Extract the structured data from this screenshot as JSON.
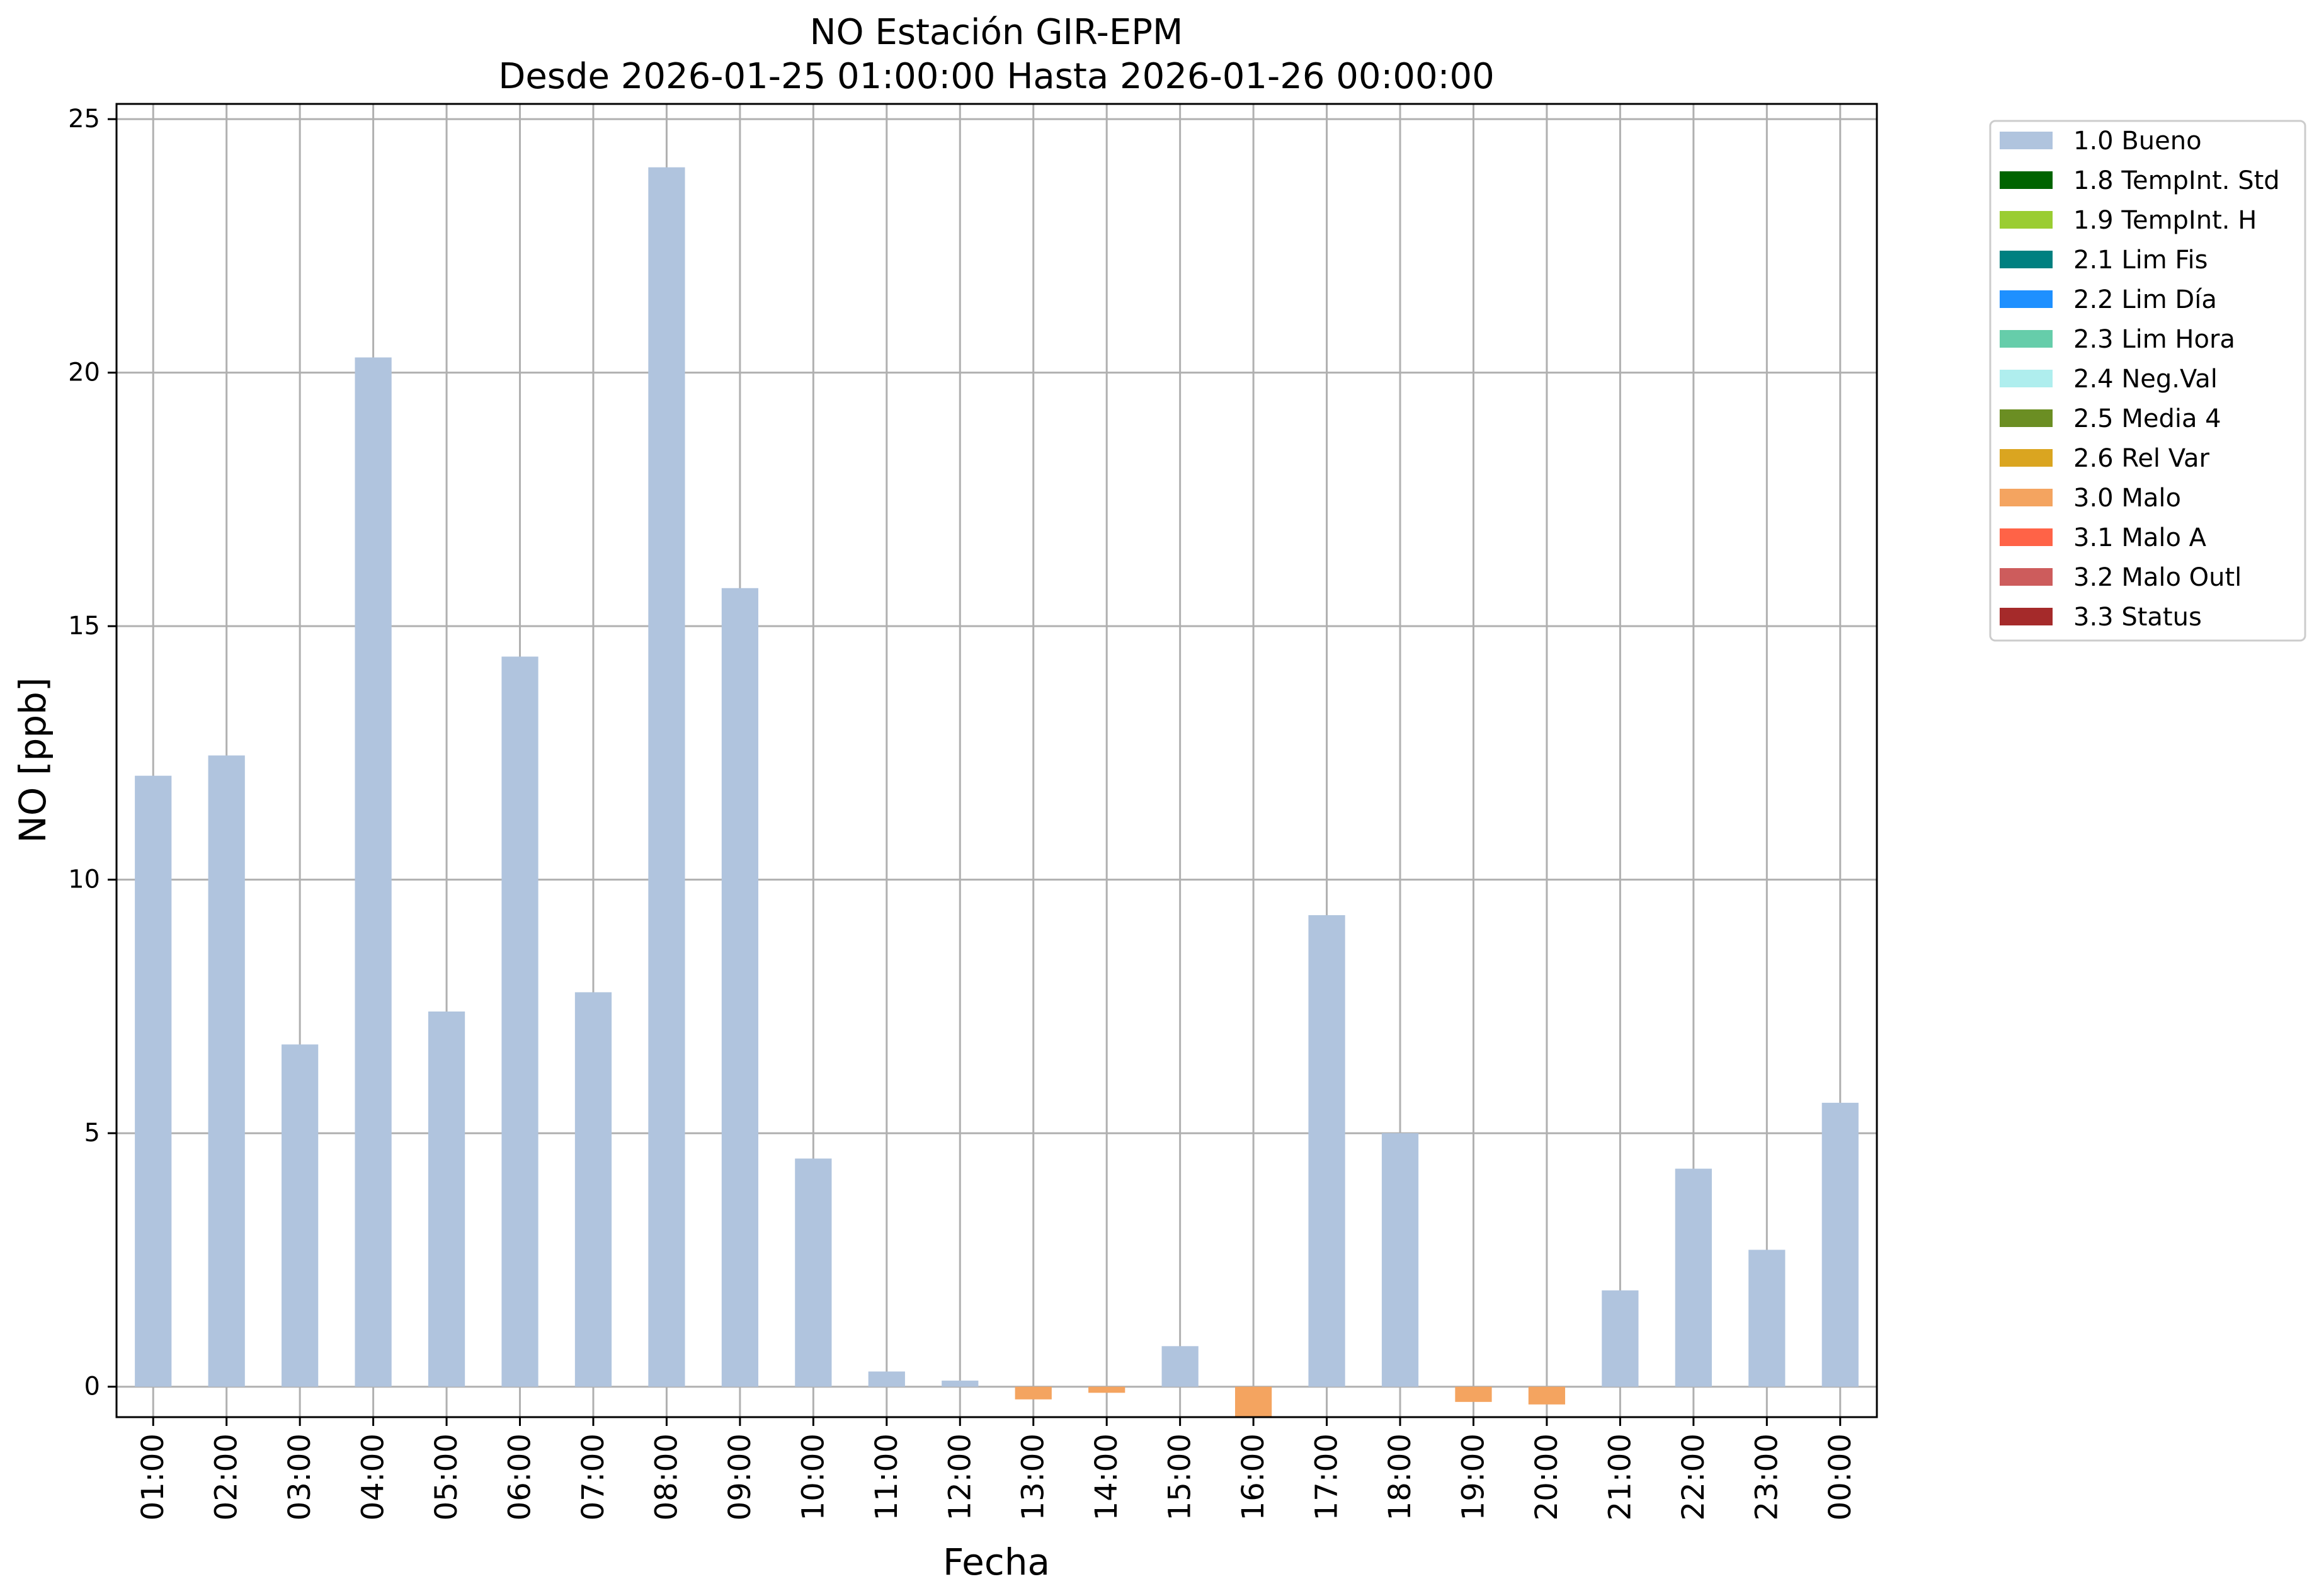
{
  "chart_data": {
    "type": "bar",
    "title": "NO Estación GIR-EPM",
    "subtitle": "Desde 2026-01-25 01:00:00 Hasta 2026-01-26 00:00:00",
    "xlabel": "Fecha",
    "ylabel": "NO [ppb]",
    "ylim": [
      -0.6,
      25.3
    ],
    "yticks": [
      0,
      5,
      10,
      15,
      20,
      25
    ],
    "grid": true,
    "legend_position": "outside-top-right",
    "categories": [
      "01:00",
      "02:00",
      "03:00",
      "04:00",
      "05:00",
      "06:00",
      "07:00",
      "08:00",
      "09:00",
      "10:00",
      "11:00",
      "12:00",
      "13:00",
      "14:00",
      "15:00",
      "16:00",
      "17:00",
      "18:00",
      "19:00",
      "20:00",
      "21:00",
      "22:00",
      "23:00",
      "00:00"
    ],
    "values": [
      12.05,
      12.45,
      6.75,
      20.3,
      7.4,
      14.4,
      7.78,
      24.05,
      15.75,
      4.5,
      0.3,
      0.12,
      -0.25,
      -0.12,
      0.8,
      -0.6,
      9.3,
      5.0,
      -0.3,
      -0.35,
      1.9,
      4.3,
      2.7,
      5.6
    ],
    "flags": [
      "1.0 Bueno",
      "1.0 Bueno",
      "1.0 Bueno",
      "1.0 Bueno",
      "1.0 Bueno",
      "1.0 Bueno",
      "1.0 Bueno",
      "1.0 Bueno",
      "1.0 Bueno",
      "1.0 Bueno",
      "1.0 Bueno",
      "1.0 Bueno",
      "3.0 Malo",
      "3.0 Malo",
      "1.0 Bueno",
      "3.0 Malo",
      "1.0 Bueno",
      "1.0 Bueno",
      "3.0 Malo",
      "3.0 Malo",
      "1.0 Bueno",
      "1.0 Bueno",
      "1.0 Bueno",
      "1.0 Bueno"
    ],
    "legend": [
      {
        "label": "1.0 Bueno",
        "color": "#b0c4de"
      },
      {
        "label": "1.8 TempInt. Std",
        "color": "#006400"
      },
      {
        "label": "1.9 TempInt. H",
        "color": "#9acd32"
      },
      {
        "label": "2.1 Lim Fis",
        "color": "#008080"
      },
      {
        "label": "2.2 Lim Día",
        "color": "#1e90ff"
      },
      {
        "label": "2.3 Lim Hora",
        "color": "#66cdaa"
      },
      {
        "label": "2.4 Neg.Val",
        "color": "#afeeee"
      },
      {
        "label": "2.5 Media 4",
        "color": "#6b8e23"
      },
      {
        "label": "2.6 Rel Var",
        "color": "#daa520"
      },
      {
        "label": "3.0 Malo",
        "color": "#f4a460"
      },
      {
        "label": "3.1 Malo A",
        "color": "#ff6347"
      },
      {
        "label": "3.2 Malo Outl",
        "color": "#cd5c5c"
      },
      {
        "label": "3.3 Status",
        "color": "#a52a2a"
      }
    ]
  }
}
